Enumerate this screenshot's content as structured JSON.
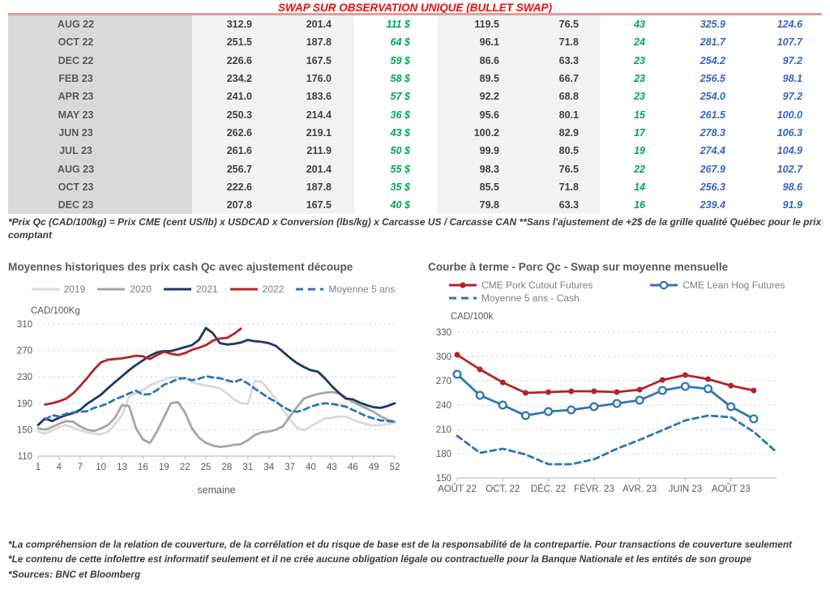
{
  "header": {
    "title": "SWAP SUR OBSERVATION UNIQUE (BULLET SWAP)",
    "title_color": "#ee0a0a",
    "divider_color": "#e79b9b"
  },
  "table": {
    "rows": [
      [
        "AUG 22",
        "312.9",
        "201.4",
        "111 $",
        "119.5",
        "76.5",
        "43",
        "325.9",
        "124.6"
      ],
      [
        "OCT 22",
        "251.5",
        "187.8",
        "64 $",
        "96.1",
        "71.8",
        "24",
        "281.7",
        "107.7"
      ],
      [
        "DEC 22",
        "226.6",
        "167.5",
        "59 $",
        "86.6",
        "63.3",
        "23",
        "254.2",
        "97.2"
      ],
      [
        "FEB 23",
        "234.2",
        "176.0",
        "58 $",
        "89.5",
        "66.7",
        "23",
        "256.5",
        "98.1"
      ],
      [
        "APR 23",
        "241.0",
        "183.6",
        "57 $",
        "92.2",
        "68.8",
        "23",
        "254.0",
        "97.2"
      ],
      [
        "MAY 23",
        "250.3",
        "214.4",
        "36 $",
        "95.6",
        "80.1",
        "15",
        "261.5",
        "100.0"
      ],
      [
        "JUN 23",
        "262.6",
        "219.1",
        "43 $",
        "100.2",
        "82.9",
        "17",
        "278.3",
        "106.3"
      ],
      [
        "JUL 23",
        "261.6",
        "211.9",
        "50 $",
        "99.9",
        "80.5",
        "19",
        "274.4",
        "104.9"
      ],
      [
        "AUG 23",
        "256.7",
        "201.4",
        "55 $",
        "98.3",
        "76.5",
        "22",
        "267.9",
        "102.7"
      ],
      [
        "OCT 23",
        "222.6",
        "187.8",
        "35 $",
        "85.5",
        "71.8",
        "14",
        "256.3",
        "98.6"
      ],
      [
        "DEC 23",
        "207.8",
        "167.5",
        "40 $",
        "79.8",
        "63.3",
        "16",
        "239.4",
        "91.9"
      ]
    ],
    "footnote": "*Prix Qc (CAD/100kg) = Prix CME (cent US/lb) x USDCAD x Conversion (lbs/kg) x Carcasse US / Carcasse CAN **Sans l'ajustement de +2$ de la grille qualité Québec pour le prix comptant",
    "colors": {
      "month_bg": "#d9d9d9",
      "band_bg": "#f2f2f2",
      "month_text": "#595959",
      "value_text": "#404040",
      "green": "#00a651",
      "blue": "#3465bd"
    }
  },
  "chart_data": [
    {
      "type": "line",
      "title": "Moyennes historiques des prix cash Qc avec ajustement découpe",
      "ylabel": "CAD/100Kg",
      "xlabel": "semaine",
      "ylim": [
        110,
        310
      ],
      "yticks": [
        110,
        150,
        190,
        230,
        270,
        310
      ],
      "xticks": [
        1,
        4,
        7,
        10,
        13,
        16,
        19,
        22,
        25,
        28,
        31,
        34,
        37,
        40,
        43,
        46,
        49,
        52
      ],
      "grid": true,
      "legend_position": "top",
      "x": "weeks 1-52",
      "series": [
        {
          "name": "2019",
          "color": "#d9d9d9",
          "style": "solid",
          "values": [
            147,
            144,
            149,
            154,
            157,
            153,
            149,
            146,
            144,
            143,
            147,
            158,
            172,
            200,
            206,
            210,
            217,
            222,
            226,
            229,
            230,
            228,
            222,
            219,
            217,
            215,
            213,
            205,
            196,
            190,
            189,
            224,
            222,
            210,
            196,
            180,
            166,
            153,
            149,
            155,
            161,
            167,
            168,
            170,
            170,
            165,
            161,
            158,
            156,
            157,
            158,
            160
          ]
        },
        {
          "name": "2020",
          "color": "#a6a6a6",
          "style": "solid",
          "values": [
            152,
            150,
            154,
            159,
            163,
            162,
            155,
            150,
            148,
            152,
            157,
            168,
            187,
            186,
            152,
            135,
            130,
            147,
            169,
            190,
            192,
            176,
            152,
            138,
            130,
            126,
            124,
            125,
            127,
            128,
            134,
            142,
            146,
            147,
            150,
            155,
            170,
            184,
            197,
            201,
            204,
            206,
            207,
            205,
            199,
            192,
            187,
            182,
            177,
            170,
            165,
            162
          ]
        },
        {
          "name": "2021",
          "color": "#1f3864",
          "style": "solid",
          "values": [
            157,
            167,
            163,
            168,
            172,
            175,
            180,
            189,
            196,
            203,
            213,
            222,
            231,
            240,
            248,
            255,
            262,
            267,
            269,
            269,
            272,
            275,
            278,
            286,
            304,
            296,
            281,
            279,
            280,
            282,
            286,
            284,
            283,
            281,
            277,
            268,
            259,
            251,
            245,
            240,
            238,
            228,
            216,
            206,
            197,
            196,
            191,
            187,
            184,
            183,
            186,
            190
          ]
        },
        {
          "name": "2022",
          "color": "#b2232a",
          "style": "solid",
          "values": [
            null,
            188,
            190,
            193,
            197,
            205,
            216,
            228,
            241,
            252,
            256,
            257,
            258,
            260,
            262,
            261,
            257,
            263,
            268,
            265,
            263,
            266,
            271,
            274,
            278,
            285,
            288,
            289,
            295,
            303,
            null,
            null,
            null,
            null,
            null,
            null,
            null,
            null,
            null,
            null,
            null,
            null,
            null,
            null,
            null,
            null,
            null,
            null,
            null,
            null,
            null,
            null
          ]
        },
        {
          "name": "Moyenne 5 ans",
          "color": "#2e75b6",
          "style": "dashed",
          "values": [
            null,
            165,
            172,
            170,
            174,
            176,
            177,
            178,
            183,
            186,
            190,
            196,
            200,
            205,
            209,
            203,
            204,
            210,
            218,
            222,
            227,
            228,
            225,
            227,
            231,
            229,
            228,
            225,
            222,
            226,
            220,
            212,
            205,
            198,
            192,
            185,
            179,
            177,
            180,
            185,
            188,
            190,
            189,
            187,
            185,
            180,
            175,
            170,
            167,
            164,
            163,
            162
          ]
        }
      ]
    },
    {
      "type": "line",
      "title": "Courbe à terme - Porc Qc - Swap sur moyenne mensuelle",
      "ylabel": "CAD/100k",
      "xlabel": "",
      "ylim": [
        150,
        330
      ],
      "yticks": [
        150,
        180,
        210,
        240,
        270,
        300,
        330
      ],
      "xtick_labels": [
        "AOÛT 22",
        "OCT. 22",
        "DÉC. 22",
        "FÉVR. 23",
        "AVR. 23",
        "JUIN 23",
        "AOÛT 23"
      ],
      "x": "monthly AOÛT 22 - OCT 23, labels every 2nd month",
      "grid": true,
      "legend_position": "top",
      "series": [
        {
          "name": "CME Pork Cutout Futures",
          "color": "#b2232a",
          "style": "solid",
          "marker": "filled-circle",
          "values": [
            302,
            284,
            268,
            255,
            256,
            257,
            257,
            256,
            259,
            271,
            277,
            272,
            264,
            258,
            null
          ]
        },
        {
          "name": "CME Lean Hog Futures",
          "color": "#2e75b6",
          "style": "solid",
          "marker": "open-circle",
          "values": [
            278,
            252,
            240,
            227,
            232,
            234,
            238,
            242,
            246,
            258,
            263,
            260,
            238,
            223,
            null
          ]
        },
        {
          "name": "Moyenne 5 ans - Cash",
          "color": "#2e75b6",
          "style": "dashed",
          "values": [
            202,
            181,
            186,
            179,
            167,
            167,
            173,
            186,
            197,
            209,
            221,
            227,
            225,
            207,
            182
          ]
        }
      ]
    }
  ],
  "footer": {
    "lines": [
      "*La compréhension de la relation de couverture, de la corrélation et du risque de base est de la responsabilité de la contrepartie. Pour transactions de couverture seulement",
      "*Le contenu de cette infolettre est informatif seulement et il ne crée aucune obligation légale ou contractuelle pour la Banque Nationale et les entités de son groupe",
      "*Sources: BNC et Bloomberg"
    ]
  }
}
